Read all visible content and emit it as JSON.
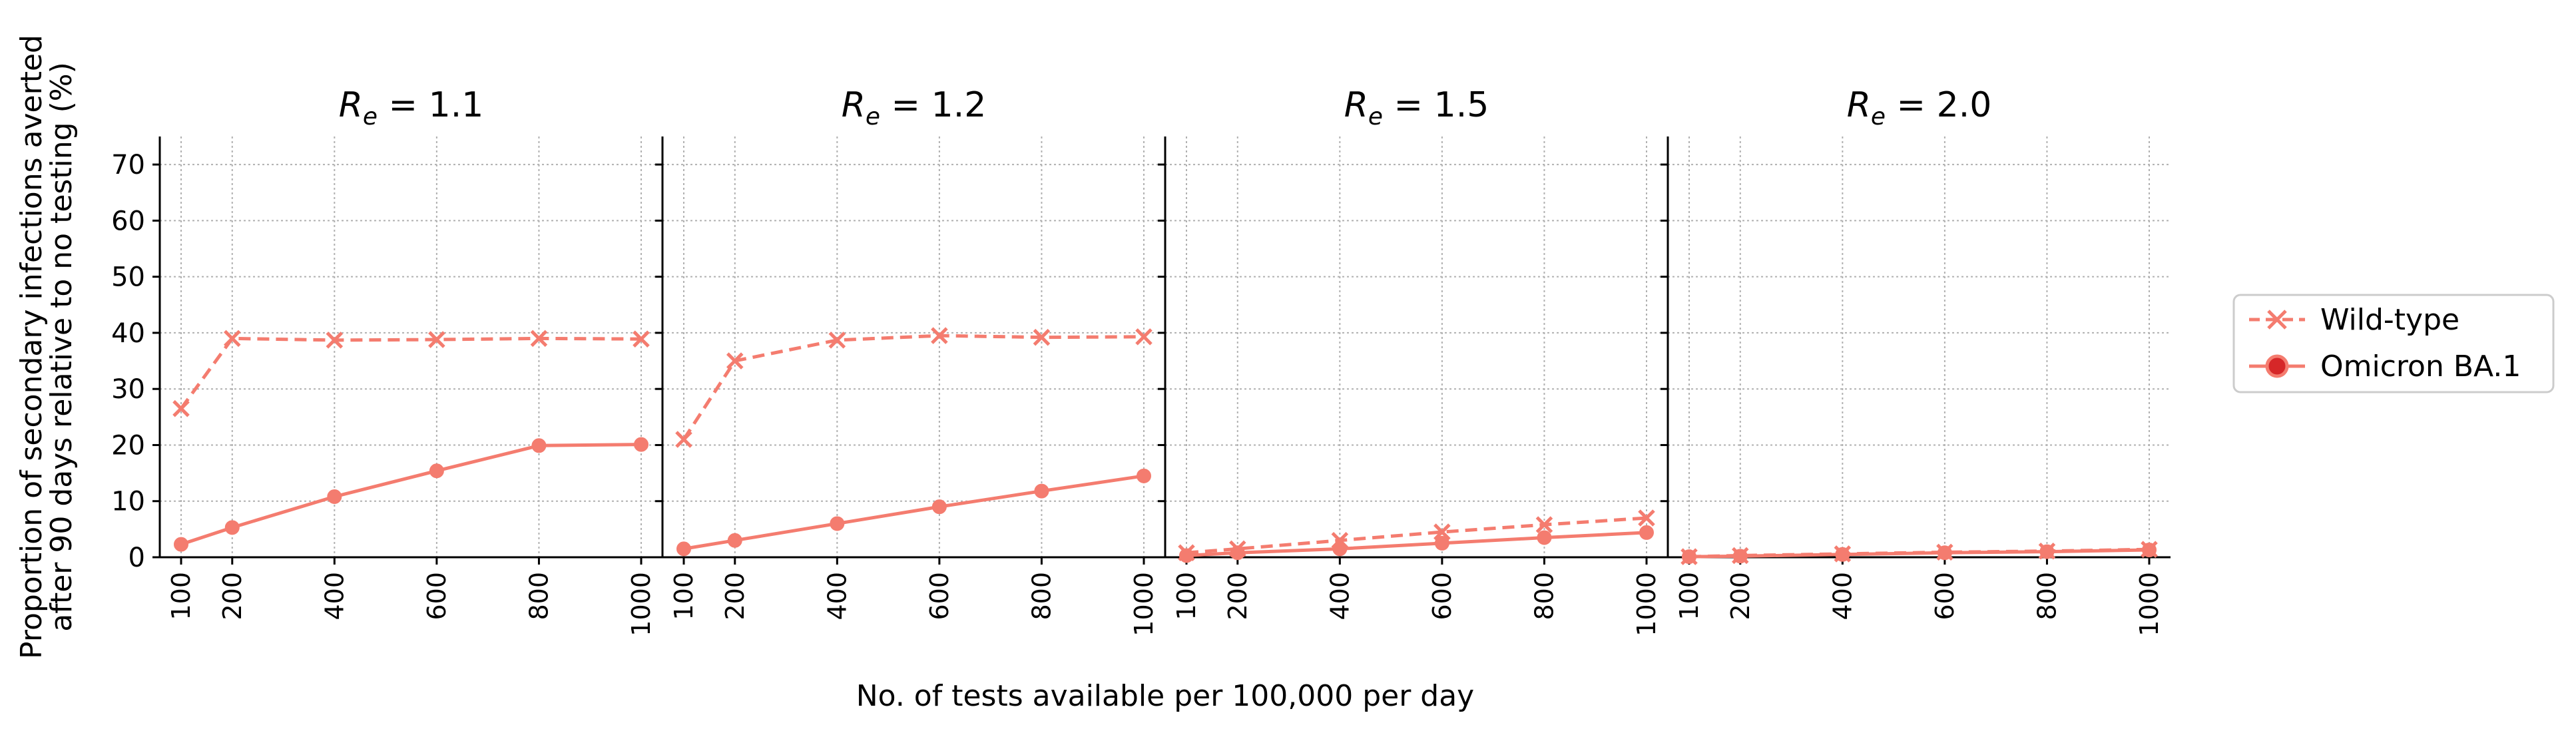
{
  "chart_data": {
    "type": "line",
    "ylabel_lines": [
      "Proportion of secondary infections averted",
      "after 90 days relative to no testing (%)"
    ],
    "xlabel": "No. of tests available per 100,000 per day",
    "ylim": [
      0,
      75
    ],
    "yticks": [
      0,
      10,
      20,
      30,
      40,
      50,
      60,
      70
    ],
    "xticks": [
      100,
      200,
      400,
      600,
      800,
      1000
    ],
    "grid": true,
    "legend_position": "right",
    "colors": {
      "series": "#f47c6f",
      "marker_omicron": "#f47c6f",
      "marker_omicron_legend": "#d62728"
    },
    "legend": [
      {
        "name": "Wild-type",
        "style": "dashed",
        "marker": "x"
      },
      {
        "name": "Omicron BA.1",
        "style": "solid",
        "marker": "o"
      }
    ],
    "panels": [
      {
        "re_symbol": "R",
        "re_sub": "e",
        "re_value": "= 1.1",
        "series": [
          {
            "name": "Wild-type",
            "x": [
              100,
              200,
              400,
              600,
              800,
              1000
            ],
            "y": [
              26.5,
              39.0,
              38.7,
              38.8,
              39.0,
              38.9
            ]
          },
          {
            "name": "Omicron BA.1",
            "x": [
              100,
              200,
              400,
              600,
              800,
              1000
            ],
            "y": [
              2.3,
              5.3,
              10.8,
              15.4,
              19.9,
              20.1
            ]
          }
        ]
      },
      {
        "re_symbol": "R",
        "re_sub": "e",
        "re_value": "= 1.2",
        "series": [
          {
            "name": "Wild-type",
            "x": [
              100,
              200,
              400,
              600,
              800,
              1000
            ],
            "y": [
              21.0,
              35.0,
              38.7,
              39.5,
              39.2,
              39.3
            ]
          },
          {
            "name": "Omicron BA.1",
            "x": [
              100,
              200,
              400,
              600,
              800,
              1000
            ],
            "y": [
              1.5,
              3.0,
              6.0,
              9.0,
              11.8,
              14.5
            ]
          }
        ]
      },
      {
        "re_symbol": "R",
        "re_sub": "e",
        "re_value": "= 1.5",
        "series": [
          {
            "name": "Wild-type",
            "x": [
              100,
              200,
              400,
              600,
              800,
              1000
            ],
            "y": [
              0.8,
              1.5,
              3.0,
              4.5,
              5.8,
              7.0
            ]
          },
          {
            "name": "Omicron BA.1",
            "x": [
              100,
              200,
              400,
              600,
              800,
              1000
            ],
            "y": [
              0.3,
              0.8,
              1.5,
              2.5,
              3.5,
              4.4
            ]
          }
        ]
      },
      {
        "re_symbol": "R",
        "re_sub": "e",
        "re_value": "= 2.0",
        "series": [
          {
            "name": "Wild-type",
            "x": [
              100,
              200,
              400,
              600,
              800,
              1000
            ],
            "y": [
              0.1,
              0.3,
              0.6,
              0.9,
              1.1,
              1.4
            ]
          },
          {
            "name": "Omicron BA.1",
            "x": [
              100,
              200,
              400,
              600,
              800,
              1000
            ],
            "y": [
              0.1,
              0.2,
              0.5,
              0.8,
              1.0,
              1.3
            ]
          }
        ]
      }
    ]
  }
}
